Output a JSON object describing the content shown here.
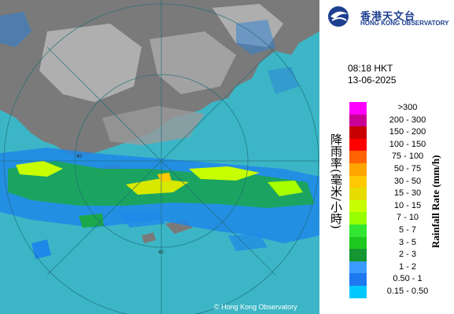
{
  "org": {
    "name_zh": "香港天文台",
    "name_en": "HONG KONG OBSERVATORY"
  },
  "timestamp": {
    "time": "08:18 HKT",
    "date": "13-06-2025"
  },
  "legend": {
    "title_en": "Rainfall Rate (mm/h)",
    "title_zh": "降雨率(毫米/小時)",
    "items": [
      {
        "label": ">300",
        "color": "#ff00ff"
      },
      {
        "label": "200 - 300",
        "color": "#c80096"
      },
      {
        "label": "150 - 200",
        "color": "#c80000"
      },
      {
        "label": "100 - 150",
        "color": "#ff0000"
      },
      {
        "label": "75 - 100",
        "color": "#ff6400"
      },
      {
        "label": "50 - 75",
        "color": "#ffa500"
      },
      {
        "label": "30 - 50",
        "color": "#ffc800"
      },
      {
        "label": "15 - 30",
        "color": "#e6dc00"
      },
      {
        "label": "10 - 15",
        "color": "#c8ff00"
      },
      {
        "label": "7 - 10",
        "color": "#96ff00"
      },
      {
        "label": "5 - 7",
        "color": "#32e632"
      },
      {
        "label": "3 - 5",
        "color": "#1ec81e"
      },
      {
        "label": "2 - 3",
        "color": "#149632"
      },
      {
        "label": "1 - 2",
        "color": "#3c9bff"
      },
      {
        "label": "0.50 - 1",
        "color": "#1e78f0"
      },
      {
        "label": "0.15 - 0.50",
        "color": "#00c8ff"
      }
    ]
  },
  "map": {
    "range_rings": [
      "40",
      "40"
    ],
    "colors": {
      "sea": "#3fb8c8",
      "land": "#6b6b6b",
      "cloud": "#d8d8d8"
    }
  },
  "copyright": "© Hong Kong Observatory"
}
